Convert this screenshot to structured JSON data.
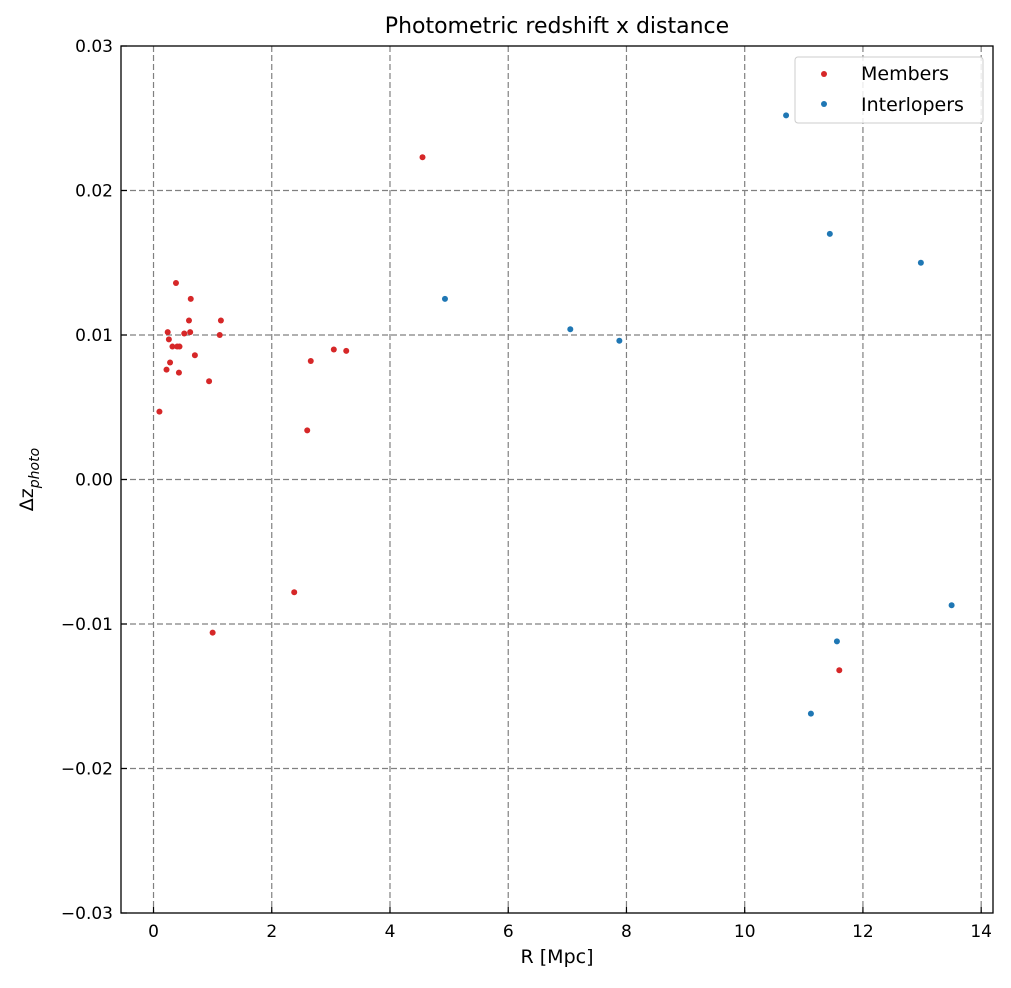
{
  "chart_data": {
    "type": "scatter",
    "title": "Photometric redshift x distance",
    "xlabel": "R [Mpc]",
    "ylabel": {
      "base": "Δz",
      "sub": "photo"
    },
    "xlim": [
      -0.55,
      14.2
    ],
    "ylim": [
      -0.03,
      0.03
    ],
    "x_ticks": [
      0,
      2,
      4,
      6,
      8,
      10,
      12,
      14
    ],
    "x_tick_labels": [
      "0",
      "2",
      "4",
      "6",
      "8",
      "10",
      "12",
      "14"
    ],
    "y_ticks": [
      -0.03,
      -0.02,
      -0.01,
      0.0,
      0.01,
      0.02,
      0.03
    ],
    "y_tick_labels": [
      "−0.03",
      "−0.02",
      "−0.01",
      "0.00",
      "0.01",
      "0.02",
      "0.03"
    ],
    "grid": true,
    "legend_position": "top-right",
    "series": [
      {
        "name": "Members",
        "color": "#d62728",
        "points": [
          [
            0.1,
            0.0047
          ],
          [
            0.22,
            0.0076
          ],
          [
            0.24,
            0.0102
          ],
          [
            0.26,
            0.0097
          ],
          [
            0.28,
            0.0081
          ],
          [
            0.32,
            0.0092
          ],
          [
            0.38,
            0.0136
          ],
          [
            0.4,
            0.0092
          ],
          [
            0.43,
            0.0074
          ],
          [
            0.44,
            0.0092
          ],
          [
            0.52,
            0.0101
          ],
          [
            0.6,
            0.011
          ],
          [
            0.62,
            0.0102
          ],
          [
            0.63,
            0.0125
          ],
          [
            0.7,
            0.0086
          ],
          [
            0.94,
            0.0068
          ],
          [
            1.0,
            -0.0106
          ],
          [
            1.12,
            0.01
          ],
          [
            1.14,
            0.011
          ],
          [
            2.38,
            -0.0078
          ],
          [
            2.6,
            0.0034
          ],
          [
            2.66,
            0.0082
          ],
          [
            3.05,
            0.009
          ],
          [
            3.26,
            0.0089
          ],
          [
            4.55,
            0.0223
          ],
          [
            11.6,
            -0.0132
          ]
        ]
      },
      {
        "name": "Interlopers",
        "color": "#1f77b4",
        "points": [
          [
            4.93,
            0.0125
          ],
          [
            7.05,
            0.0104
          ],
          [
            7.88,
            0.0096
          ],
          [
            10.7,
            0.0252
          ],
          [
            11.12,
            -0.0162
          ],
          [
            11.44,
            0.017
          ],
          [
            11.56,
            -0.0112
          ],
          [
            12.98,
            0.015
          ],
          [
            13.5,
            -0.0087
          ]
        ]
      }
    ]
  }
}
